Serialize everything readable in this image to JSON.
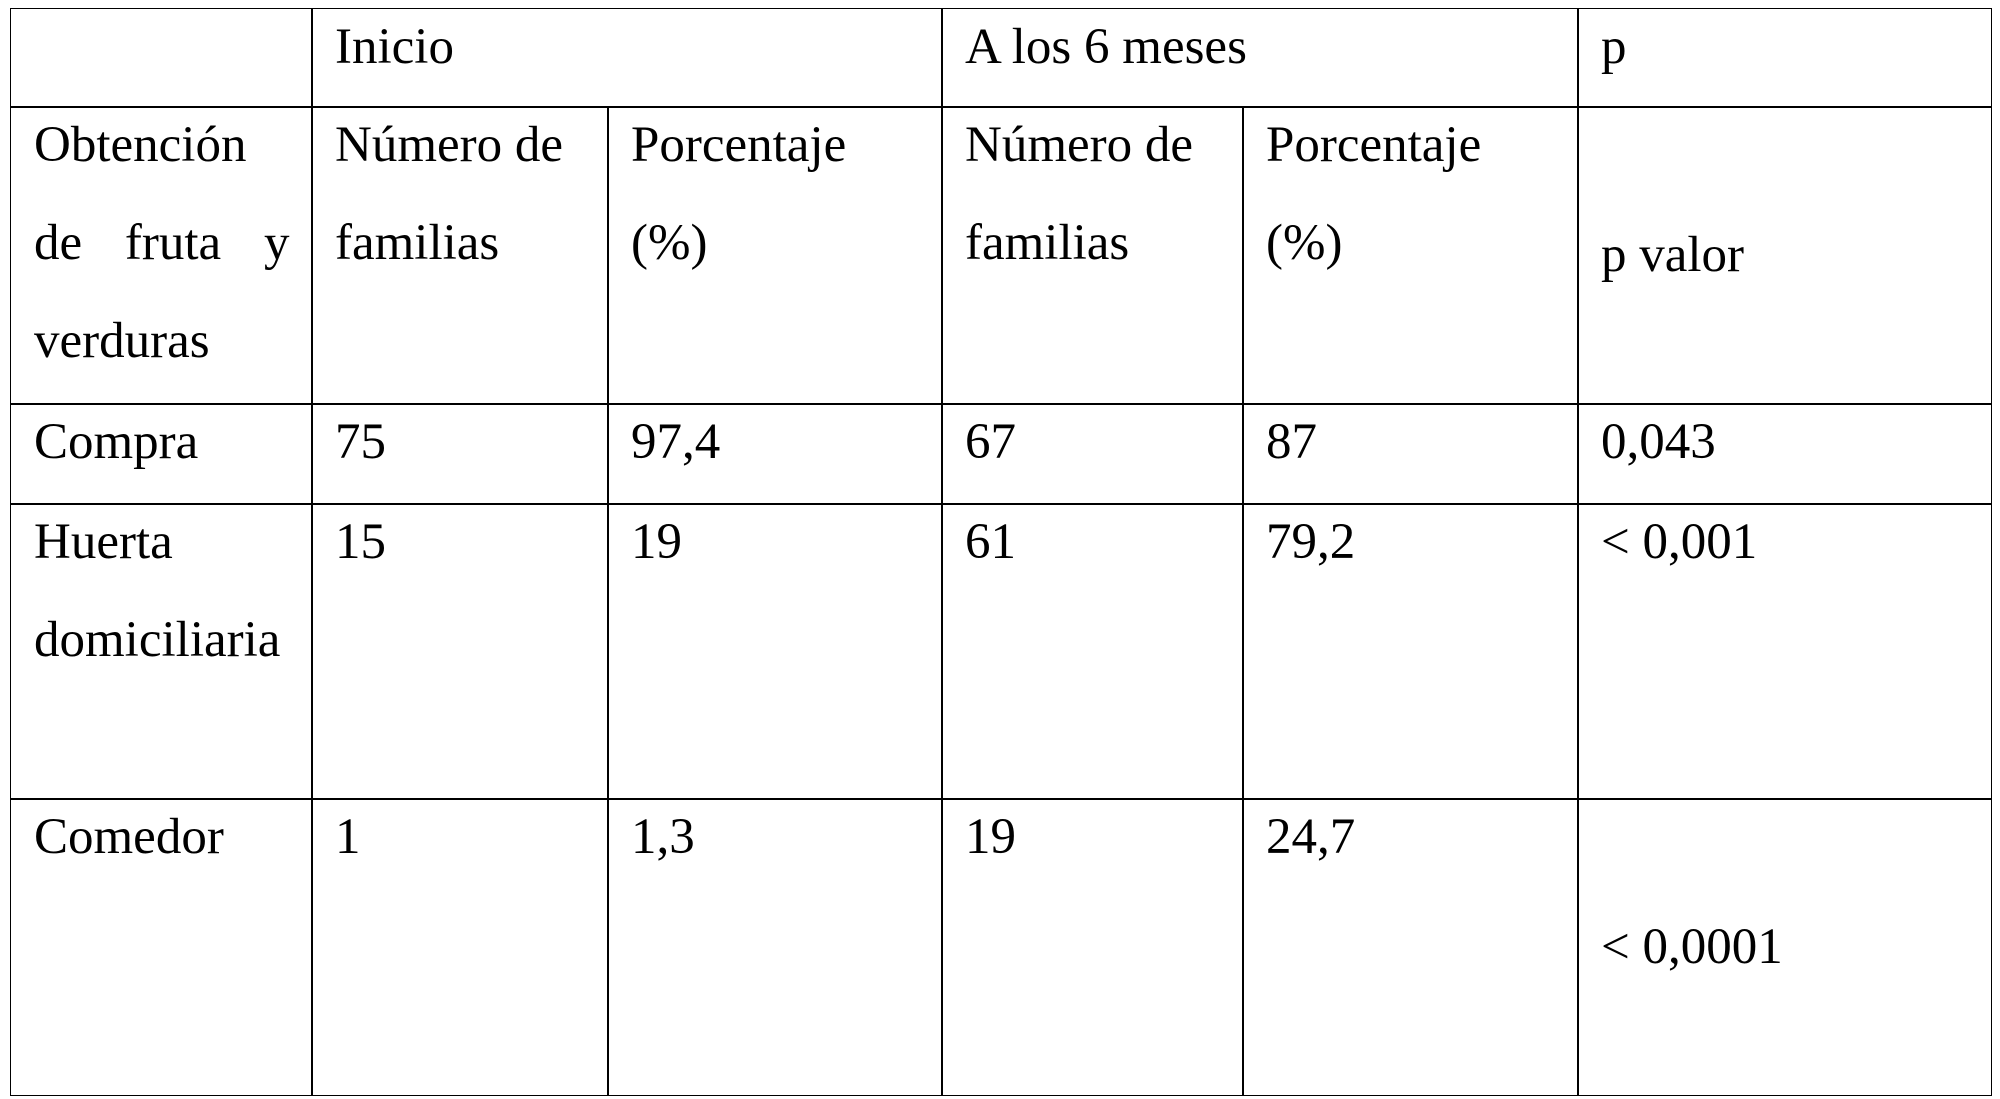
{
  "table": {
    "group_headers": [
      "Inicio",
      "A los 6 meses",
      "p"
    ],
    "column_headers": [
      "Obtención de fruta y verduras",
      "Número de familias",
      "Porcentaje (%)",
      "Número de familias",
      "Porcentaje (%)",
      "p valor"
    ],
    "rows": [
      [
        "Compra",
        "75",
        "97,4",
        "67",
        "87",
        "0,043"
      ],
      [
        "Huerta domiciliaria",
        "15",
        "19",
        "61",
        "79,2",
        "< 0,001"
      ],
      [
        "Comedor",
        "1",
        "1,3",
        "19",
        "24,7",
        "< 0,0001"
      ]
    ]
  }
}
